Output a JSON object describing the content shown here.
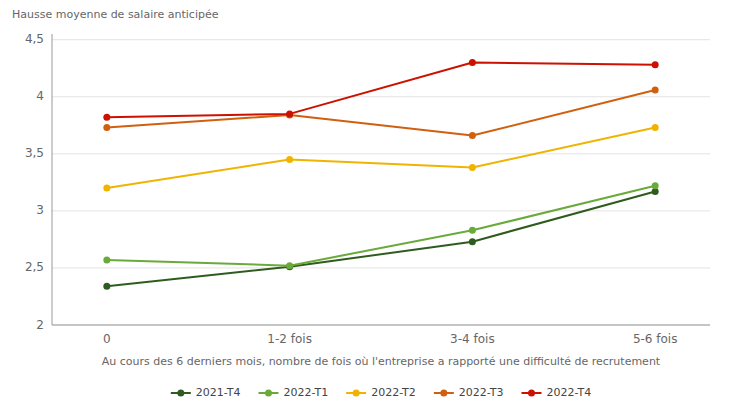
{
  "chart_data": {
    "type": "line",
    "y_label": "Hausse moyenne de salaire anticipée",
    "x_label": "Au cours des 6 derniers mois, nombre de fois où l'entreprise a rapporté une difficulté de recrutement",
    "categories": [
      "0",
      "1-2 fois",
      "3-4 fois",
      "5-6 fois"
    ],
    "series": [
      {
        "name": "2021-T4",
        "color": "#2e5c1e",
        "marker": "circle",
        "values": [
          2.34,
          2.51,
          2.73,
          3.17
        ]
      },
      {
        "name": "2022-T1",
        "color": "#6aaa3a",
        "marker": "circle",
        "values": [
          2.57,
          2.52,
          2.83,
          3.22
        ]
      },
      {
        "name": "2022-T2",
        "color": "#f0b400",
        "marker": "circle",
        "values": [
          3.2,
          3.45,
          3.38,
          3.73
        ]
      },
      {
        "name": "2022-T3",
        "color": "#d06010",
        "marker": "circle",
        "values": [
          3.73,
          3.84,
          3.66,
          4.06
        ]
      },
      {
        "name": "2022-T4",
        "color": "#cc1100",
        "marker": "circle",
        "values": [
          3.82,
          3.85,
          4.3,
          4.28
        ]
      }
    ],
    "ylim": [
      2.0,
      4.55
    ],
    "yticks": [
      2,
      {
        "value": 2.5,
        "label": "2,5"
      },
      3,
      {
        "value": 3.5,
        "label": "3,5"
      },
      4,
      {
        "value": 4.5,
        "label": "4,5"
      }
    ],
    "grid": true,
    "legend": "bottom"
  }
}
